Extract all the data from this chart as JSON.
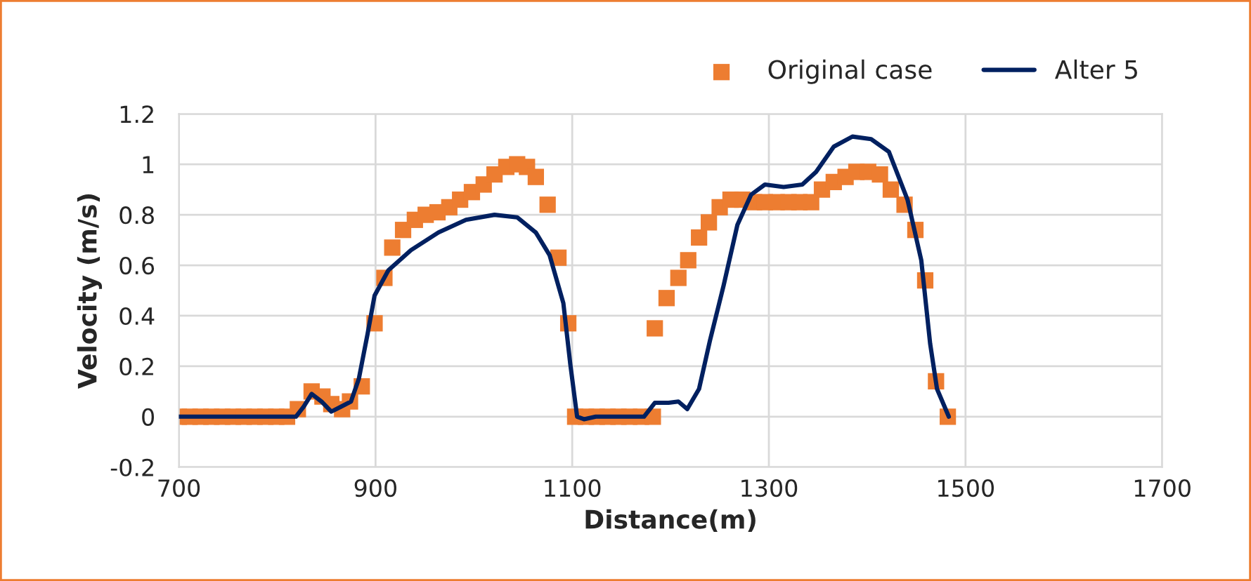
{
  "chart_data": {
    "type": "scatter",
    "xlabel": "Distance(m)",
    "ylabel": "Velocity (m/s)",
    "xlim": [
      700,
      1700
    ],
    "xticks": [
      700,
      900,
      1100,
      1300,
      1500,
      1700
    ],
    "ylim": [
      -0.2,
      1.2
    ],
    "yticks": [
      -0.2,
      0,
      0.2,
      0.4,
      0.6,
      0.8,
      1,
      1.2
    ],
    "grid": true,
    "legend": "top right",
    "series": [
      {
        "name": "Original case",
        "marker": "square",
        "color": "#ed7d31",
        "x": [
          700,
          711,
          722,
          733,
          744,
          755,
          766,
          777,
          788,
          799,
          810,
          821,
          835,
          846,
          855,
          866,
          874,
          886,
          899,
          909,
          917,
          928,
          940,
          951,
          963,
          975,
          986,
          998,
          1010,
          1021,
          1033,
          1044,
          1054,
          1063,
          1075,
          1086,
          1096,
          1103,
          1114,
          1125,
          1136,
          1147,
          1158,
          1170,
          1182,
          1184,
          1196,
          1208,
          1218,
          1229,
          1239,
          1250,
          1261,
          1273,
          1285,
          1296,
          1308,
          1320,
          1331,
          1343,
          1354,
          1366,
          1378,
          1389,
          1401,
          1413,
          1424,
          1438,
          1449,
          1459,
          1470,
          1482
        ],
        "values": [
          0,
          0,
          0,
          0,
          0,
          0,
          0,
          0,
          0,
          0,
          0,
          0.03,
          0.1,
          0.08,
          0.05,
          0.03,
          0.06,
          0.12,
          0.37,
          0.55,
          0.67,
          0.74,
          0.78,
          0.8,
          0.81,
          0.83,
          0.86,
          0.89,
          0.92,
          0.96,
          0.99,
          1.0,
          0.99,
          0.95,
          0.84,
          0.63,
          0.37,
          0,
          0,
          0,
          0,
          0,
          0,
          0,
          0,
          0.35,
          0.47,
          0.55,
          0.62,
          0.71,
          0.77,
          0.83,
          0.86,
          0.86,
          0.85,
          0.85,
          0.85,
          0.85,
          0.85,
          0.85,
          0.9,
          0.93,
          0.95,
          0.97,
          0.97,
          0.96,
          0.9,
          0.84,
          0.74,
          0.54,
          0.14,
          0
        ]
      },
      {
        "name": "Alter 5",
        "type": "line",
        "marker": "none",
        "line_style": "solid",
        "color": "#002060",
        "x": [
          700,
          760,
          819,
          827,
          835,
          845,
          855,
          865,
          875,
          883,
          888,
          892,
          899,
          913,
          936,
          964,
          992,
          1021,
          1044,
          1063,
          1077,
          1091,
          1098,
          1105,
          1112,
          1124,
          1150,
          1173,
          1184,
          1198,
          1208,
          1217,
          1229,
          1240,
          1254,
          1268,
          1282,
          1296,
          1315,
          1334,
          1348,
          1366,
          1385,
          1404,
          1422,
          1441,
          1455,
          1464,
          1471,
          1483
        ],
        "values": [
          0,
          0,
          0,
          0.04,
          0.09,
          0.06,
          0.02,
          0.04,
          0.06,
          0.15,
          0.25,
          0.33,
          0.48,
          0.58,
          0.66,
          0.73,
          0.78,
          0.8,
          0.79,
          0.73,
          0.64,
          0.45,
          0.21,
          0,
          -0.01,
          0,
          0,
          0,
          0.055,
          0.055,
          0.06,
          0.03,
          0.11,
          0.3,
          0.52,
          0.76,
          0.88,
          0.92,
          0.91,
          0.92,
          0.97,
          1.07,
          1.11,
          1.1,
          1.05,
          0.86,
          0.62,
          0.29,
          0.11,
          0
        ]
      }
    ]
  }
}
